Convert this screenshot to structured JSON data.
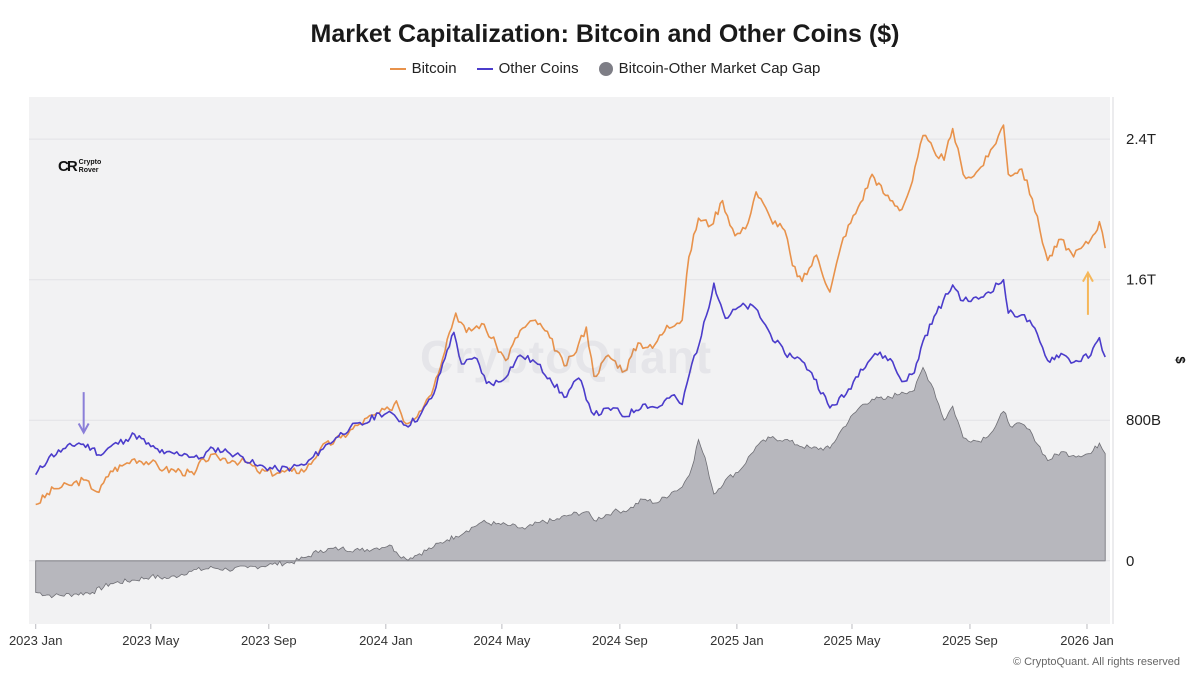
{
  "chart_data": {
    "type": "line",
    "title": "Market Capitalization: Bitcoin and Other Coins ($)",
    "ylabel": "$",
    "xlabel": "",
    "x_ticks": [
      "2023 Jan",
      "2023 May",
      "2023 Sep",
      "2024 Jan",
      "2024 May",
      "2024 Sep",
      "2025 Jan",
      "2025 May",
      "2025 Sep",
      "2026 Jan"
    ],
    "y_ticks": [
      {
        "value": 0,
        "label": "0"
      },
      {
        "value": 800,
        "label": "800B"
      },
      {
        "value": 1600,
        "label": "1.6T"
      },
      {
        "value": 2400,
        "label": "2.4T"
      }
    ],
    "ylim": [
      -360,
      2640
    ],
    "xlim": [
      "2022-12-25",
      "2026-01-25"
    ],
    "y_units": "billions USD",
    "legend_position": "top-center",
    "grid": true,
    "colors": {
      "bitcoin": "#E8924B",
      "other": "#4B3CCB",
      "gap_fill": "#B7B7BD",
      "gap_line": "#6E6E74"
    },
    "series": [
      {
        "name": "Bitcoin",
        "kind": "line",
        "color": "#E8924B",
        "points": [
          [
            "2023-01-01",
            320
          ],
          [
            "2023-01-20",
            410
          ],
          [
            "2023-02-05",
            430
          ],
          [
            "2023-02-20",
            460
          ],
          [
            "2023-03-08",
            390
          ],
          [
            "2023-03-20",
            510
          ],
          [
            "2023-04-01",
            540
          ],
          [
            "2023-04-14",
            580
          ],
          [
            "2023-05-01",
            560
          ],
          [
            "2023-05-15",
            520
          ],
          [
            "2023-06-01",
            510
          ],
          [
            "2023-06-15",
            490
          ],
          [
            "2023-06-25",
            580
          ],
          [
            "2023-07-10",
            590
          ],
          [
            "2023-07-25",
            570
          ],
          [
            "2023-08-10",
            560
          ],
          [
            "2023-08-20",
            510
          ],
          [
            "2023-09-10",
            500
          ],
          [
            "2023-09-25",
            510
          ],
          [
            "2023-10-10",
            520
          ],
          [
            "2023-10-25",
            640
          ],
          [
            "2023-11-15",
            700
          ],
          [
            "2023-12-05",
            780
          ],
          [
            "2023-12-20",
            830
          ],
          [
            "2024-01-05",
            860
          ],
          [
            "2024-01-12",
            910
          ],
          [
            "2024-01-22",
            780
          ],
          [
            "2024-02-05",
            850
          ],
          [
            "2024-02-20",
            990
          ],
          [
            "2024-03-05",
            1260
          ],
          [
            "2024-03-14",
            1410
          ],
          [
            "2024-03-25",
            1300
          ],
          [
            "2024-04-10",
            1350
          ],
          [
            "2024-04-25",
            1230
          ],
          [
            "2024-05-05",
            1140
          ],
          [
            "2024-05-20",
            1310
          ],
          [
            "2024-06-05",
            1370
          ],
          [
            "2024-06-20",
            1270
          ],
          [
            "2024-07-05",
            1110
          ],
          [
            "2024-07-15",
            1170
          ],
          [
            "2024-07-28",
            1330
          ],
          [
            "2024-08-05",
            1050
          ],
          [
            "2024-08-20",
            1170
          ],
          [
            "2024-09-06",
            1080
          ],
          [
            "2024-09-20",
            1240
          ],
          [
            "2024-10-05",
            1210
          ],
          [
            "2024-10-20",
            1340
          ],
          [
            "2024-11-05",
            1370
          ],
          [
            "2024-11-12",
            1730
          ],
          [
            "2024-11-22",
            1950
          ],
          [
            "2024-12-05",
            1910
          ],
          [
            "2024-12-17",
            2050
          ],
          [
            "2024-12-30",
            1850
          ],
          [
            "2025-01-10",
            1890
          ],
          [
            "2025-01-21",
            2100
          ],
          [
            "2025-02-05",
            1950
          ],
          [
            "2025-02-20",
            1880
          ],
          [
            "2025-02-28",
            1680
          ],
          [
            "2025-03-10",
            1590
          ],
          [
            "2025-03-25",
            1740
          ],
          [
            "2025-04-08",
            1530
          ],
          [
            "2025-04-22",
            1840
          ],
          [
            "2025-05-10",
            2040
          ],
          [
            "2025-05-22",
            2200
          ],
          [
            "2025-06-05",
            2080
          ],
          [
            "2025-06-22",
            2000
          ],
          [
            "2025-07-03",
            2160
          ],
          [
            "2025-07-14",
            2420
          ],
          [
            "2025-07-25",
            2340
          ],
          [
            "2025-08-05",
            2280
          ],
          [
            "2025-08-14",
            2460
          ],
          [
            "2025-08-25",
            2200
          ],
          [
            "2025-09-05",
            2190
          ],
          [
            "2025-09-20",
            2300
          ],
          [
            "2025-10-06",
            2480
          ],
          [
            "2025-10-11",
            2200
          ],
          [
            "2025-10-25",
            2230
          ],
          [
            "2025-11-05",
            2060
          ],
          [
            "2025-11-21",
            1710
          ],
          [
            "2025-12-05",
            1830
          ],
          [
            "2025-12-18",
            1730
          ],
          [
            "2026-01-05",
            1830
          ],
          [
            "2026-01-14",
            1930
          ],
          [
            "2026-01-20",
            1780
          ]
        ]
      },
      {
        "name": "Other Coins",
        "kind": "line",
        "color": "#4B3CCB",
        "points": [
          [
            "2023-01-01",
            490
          ],
          [
            "2023-01-15",
            590
          ],
          [
            "2023-02-01",
            640
          ],
          [
            "2023-02-15",
            670
          ],
          [
            "2023-03-01",
            640
          ],
          [
            "2023-03-10",
            600
          ],
          [
            "2023-03-20",
            650
          ],
          [
            "2023-04-05",
            690
          ],
          [
            "2023-04-14",
            720
          ],
          [
            "2023-05-01",
            650
          ],
          [
            "2023-05-15",
            610
          ],
          [
            "2023-06-05",
            610
          ],
          [
            "2023-06-20",
            580
          ],
          [
            "2023-07-05",
            640
          ],
          [
            "2023-07-20",
            620
          ],
          [
            "2023-08-05",
            590
          ],
          [
            "2023-08-20",
            540
          ],
          [
            "2023-09-10",
            520
          ],
          [
            "2023-09-25",
            530
          ],
          [
            "2023-10-10",
            550
          ],
          [
            "2023-10-25",
            630
          ],
          [
            "2023-11-10",
            700
          ],
          [
            "2023-11-25",
            760
          ],
          [
            "2023-12-10",
            780
          ],
          [
            "2023-12-25",
            840
          ],
          [
            "2024-01-10",
            830
          ],
          [
            "2024-01-22",
            770
          ],
          [
            "2024-02-05",
            820
          ],
          [
            "2024-02-20",
            950
          ],
          [
            "2024-03-05",
            1200
          ],
          [
            "2024-03-12",
            1300
          ],
          [
            "2024-03-20",
            1120
          ],
          [
            "2024-04-05",
            1150
          ],
          [
            "2024-04-15",
            1010
          ],
          [
            "2024-04-30",
            1020
          ],
          [
            "2024-05-20",
            1170
          ],
          [
            "2024-06-05",
            1130
          ],
          [
            "2024-06-20",
            1040
          ],
          [
            "2024-07-05",
            930
          ],
          [
            "2024-07-20",
            1040
          ],
          [
            "2024-08-05",
            830
          ],
          [
            "2024-08-25",
            870
          ],
          [
            "2024-09-06",
            820
          ],
          [
            "2024-09-25",
            890
          ],
          [
            "2024-10-10",
            870
          ],
          [
            "2024-10-25",
            940
          ],
          [
            "2024-11-05",
            890
          ],
          [
            "2024-11-15",
            1120
          ],
          [
            "2024-11-25",
            1280
          ],
          [
            "2024-12-08",
            1580
          ],
          [
            "2024-12-20",
            1380
          ],
          [
            "2025-01-05",
            1450
          ],
          [
            "2025-01-20",
            1440
          ],
          [
            "2025-02-05",
            1290
          ],
          [
            "2025-02-20",
            1180
          ],
          [
            "2025-03-05",
            1160
          ],
          [
            "2025-03-20",
            1070
          ],
          [
            "2025-04-08",
            870
          ],
          [
            "2025-04-25",
            950
          ],
          [
            "2025-05-10",
            1090
          ],
          [
            "2025-05-25",
            1180
          ],
          [
            "2025-06-10",
            1150
          ],
          [
            "2025-06-22",
            1020
          ],
          [
            "2025-07-05",
            1070
          ],
          [
            "2025-07-14",
            1250
          ],
          [
            "2025-07-28",
            1410
          ],
          [
            "2025-08-14",
            1570
          ],
          [
            "2025-08-25",
            1480
          ],
          [
            "2025-09-10",
            1490
          ],
          [
            "2025-09-20",
            1530
          ],
          [
            "2025-10-06",
            1600
          ],
          [
            "2025-10-11",
            1410
          ],
          [
            "2025-10-25",
            1400
          ],
          [
            "2025-11-05",
            1340
          ],
          [
            "2025-11-21",
            1140
          ],
          [
            "2025-12-05",
            1180
          ],
          [
            "2025-12-18",
            1130
          ],
          [
            "2026-01-05",
            1170
          ],
          [
            "2026-01-14",
            1270
          ],
          [
            "2026-01-20",
            1160
          ]
        ]
      },
      {
        "name": "Bitcoin-Other Market Cap Gap",
        "kind": "area",
        "color": "#B7B7BD",
        "points": [
          [
            "2023-01-01",
            -180
          ],
          [
            "2023-01-20",
            -200
          ],
          [
            "2023-02-10",
            -190
          ],
          [
            "2023-03-01",
            -180
          ],
          [
            "2023-03-20",
            -130
          ],
          [
            "2023-04-14",
            -110
          ],
          [
            "2023-05-01",
            -90
          ],
          [
            "2023-05-20",
            -100
          ],
          [
            "2023-06-10",
            -60
          ],
          [
            "2023-07-05",
            -40
          ],
          [
            "2023-07-20",
            -50
          ],
          [
            "2023-08-10",
            -40
          ],
          [
            "2023-09-05",
            -20
          ],
          [
            "2023-09-25",
            -10
          ],
          [
            "2023-10-10",
            20
          ],
          [
            "2023-10-25",
            60
          ],
          [
            "2023-11-15",
            70
          ],
          [
            "2023-12-05",
            60
          ],
          [
            "2023-12-20",
            70
          ],
          [
            "2024-01-05",
            90
          ],
          [
            "2024-01-12",
            50
          ],
          [
            "2024-01-22",
            10
          ],
          [
            "2024-02-05",
            40
          ],
          [
            "2024-02-20",
            80
          ],
          [
            "2024-03-05",
            120
          ],
          [
            "2024-03-14",
            140
          ],
          [
            "2024-03-25",
            170
          ],
          [
            "2024-04-10",
            220
          ],
          [
            "2024-04-25",
            210
          ],
          [
            "2024-05-10",
            200
          ],
          [
            "2024-05-25",
            180
          ],
          [
            "2024-06-10",
            220
          ],
          [
            "2024-06-25",
            230
          ],
          [
            "2024-07-10",
            260
          ],
          [
            "2024-07-28",
            280
          ],
          [
            "2024-08-05",
            230
          ],
          [
            "2024-08-25",
            280
          ],
          [
            "2024-09-10",
            290
          ],
          [
            "2024-09-25",
            350
          ],
          [
            "2024-10-10",
            330
          ],
          [
            "2024-10-25",
            390
          ],
          [
            "2024-11-05",
            420
          ],
          [
            "2024-11-15",
            530
          ],
          [
            "2024-11-22",
            690
          ],
          [
            "2024-12-01",
            540
          ],
          [
            "2024-12-08",
            380
          ],
          [
            "2024-12-20",
            460
          ],
          [
            "2025-01-05",
            520
          ],
          [
            "2025-01-21",
            650
          ],
          [
            "2025-02-05",
            700
          ],
          [
            "2025-02-20",
            690
          ],
          [
            "2025-03-05",
            660
          ],
          [
            "2025-03-20",
            640
          ],
          [
            "2025-04-08",
            640
          ],
          [
            "2025-04-22",
            760
          ],
          [
            "2025-05-10",
            880
          ],
          [
            "2025-05-22",
            920
          ],
          [
            "2025-06-05",
            920
          ],
          [
            "2025-06-22",
            960
          ],
          [
            "2025-07-05",
            970
          ],
          [
            "2025-07-14",
            1100
          ],
          [
            "2025-07-25",
            980
          ],
          [
            "2025-08-05",
            800
          ],
          [
            "2025-08-14",
            880
          ],
          [
            "2025-08-25",
            700
          ],
          [
            "2025-09-10",
            680
          ],
          [
            "2025-09-25",
            740
          ],
          [
            "2025-10-06",
            850
          ],
          [
            "2025-10-15",
            760
          ],
          [
            "2025-10-25",
            780
          ],
          [
            "2025-11-05",
            720
          ],
          [
            "2025-11-21",
            570
          ],
          [
            "2025-12-05",
            620
          ],
          [
            "2025-12-18",
            600
          ],
          [
            "2026-01-05",
            610
          ],
          [
            "2026-01-14",
            670
          ],
          [
            "2026-01-20",
            610
          ]
        ]
      }
    ],
    "annotations": [
      {
        "type": "arrow-down",
        "color": "#8B7FD8",
        "x": "2023-02-20",
        "from_y": 960,
        "to_y": 730
      },
      {
        "type": "arrow-up",
        "color": "#F5B75A",
        "x": "2026-01-02",
        "from_y": 1400,
        "to_y": 1640
      }
    ]
  },
  "logo": {
    "mark": "CR",
    "line1": "Crypto",
    "line2": "Rover"
  },
  "watermark": "CryptoQuant",
  "copyright": "© CryptoQuant. All rights reserved"
}
